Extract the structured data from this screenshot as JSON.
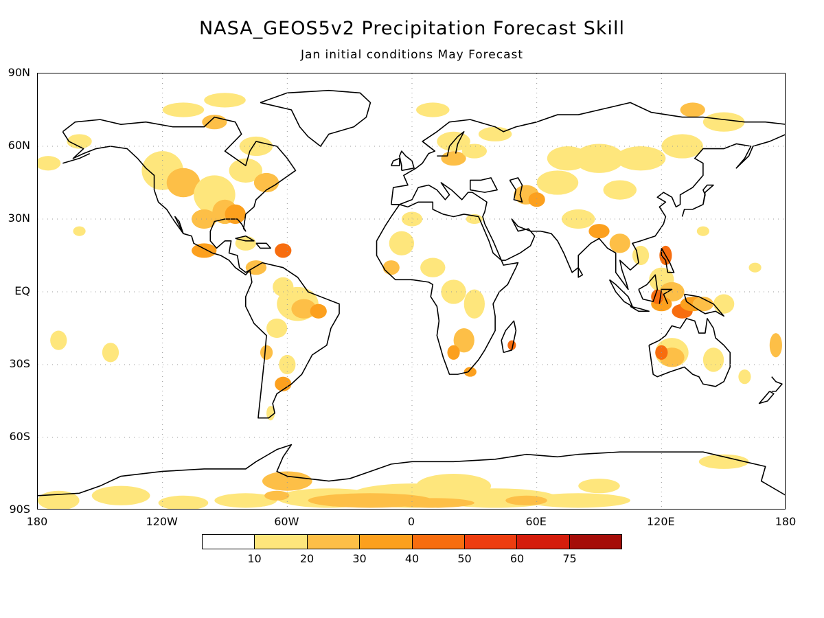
{
  "title": "NASA_GEOS5v2 Precipitation Forecast Skill",
  "subtitle": "Jan initial conditions   May Forecast",
  "latitude_labels": [
    "90N",
    "60N",
    "30N",
    "EQ",
    "30S",
    "60S",
    "90S"
  ],
  "longitude_labels": [
    "180",
    "120W",
    "60W",
    "0",
    "60E",
    "120E",
    "180"
  ],
  "colorbar": {
    "colors": [
      "#ffffff",
      "#fee67c",
      "#fdbf47",
      "#fca01e",
      "#f76d0f",
      "#ed3d10",
      "#d41d0c",
      "#a50d08"
    ],
    "labels": [
      "10",
      "20",
      "30",
      "40",
      "50",
      "60",
      "75"
    ]
  },
  "map": {
    "projection": "cylindrical equidistant",
    "grid": true,
    "lon_range": [
      -180,
      180
    ],
    "lat_range": [
      -90,
      90
    ]
  }
}
